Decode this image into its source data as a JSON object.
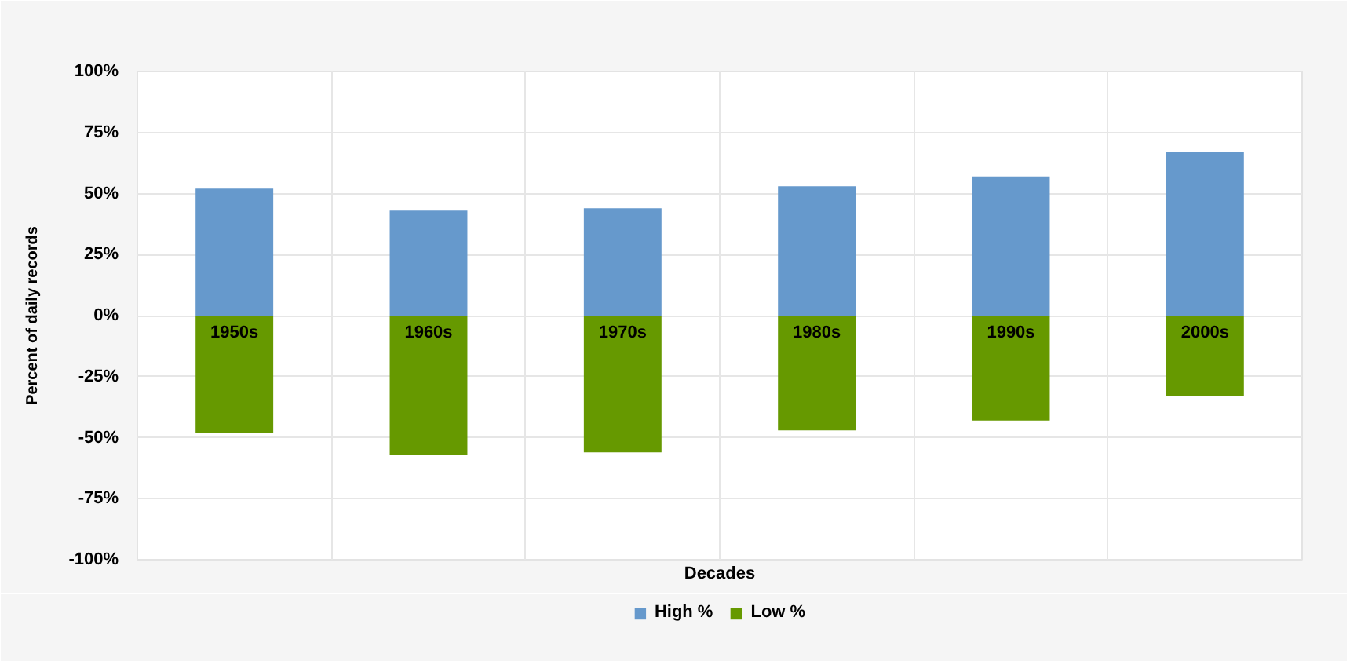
{
  "chart_data": {
    "type": "bar",
    "xlabel": "Decades",
    "ylabel": "Percent of daily records",
    "categories": [
      "1950s",
      "1960s",
      "1970s",
      "1980s",
      "1990s",
      "2000s"
    ],
    "series": [
      {
        "name": "High %",
        "color": "#6699cc",
        "values": [
          52,
          43,
          44,
          53,
          57,
          67
        ]
      },
      {
        "name": "Low %",
        "color": "#669900",
        "values": [
          -48,
          -57,
          -56,
          -47,
          -43,
          -33
        ]
      }
    ],
    "stacked": true,
    "ylim": [
      -100,
      100
    ],
    "yticks": [
      {
        "value": 100,
        "label": "100%"
      },
      {
        "value": 75,
        "label": "75%"
      },
      {
        "value": 50,
        "label": "50%"
      },
      {
        "value": 25,
        "label": "25%"
      },
      {
        "value": 0,
        "label": "0%"
      },
      {
        "value": -25,
        "label": "-25%"
      },
      {
        "value": -50,
        "label": "-50%"
      },
      {
        "value": -75,
        "label": "-75%"
      },
      {
        "value": -100,
        "label": "-100%"
      }
    ],
    "grid": true,
    "legend": "bottom"
  }
}
